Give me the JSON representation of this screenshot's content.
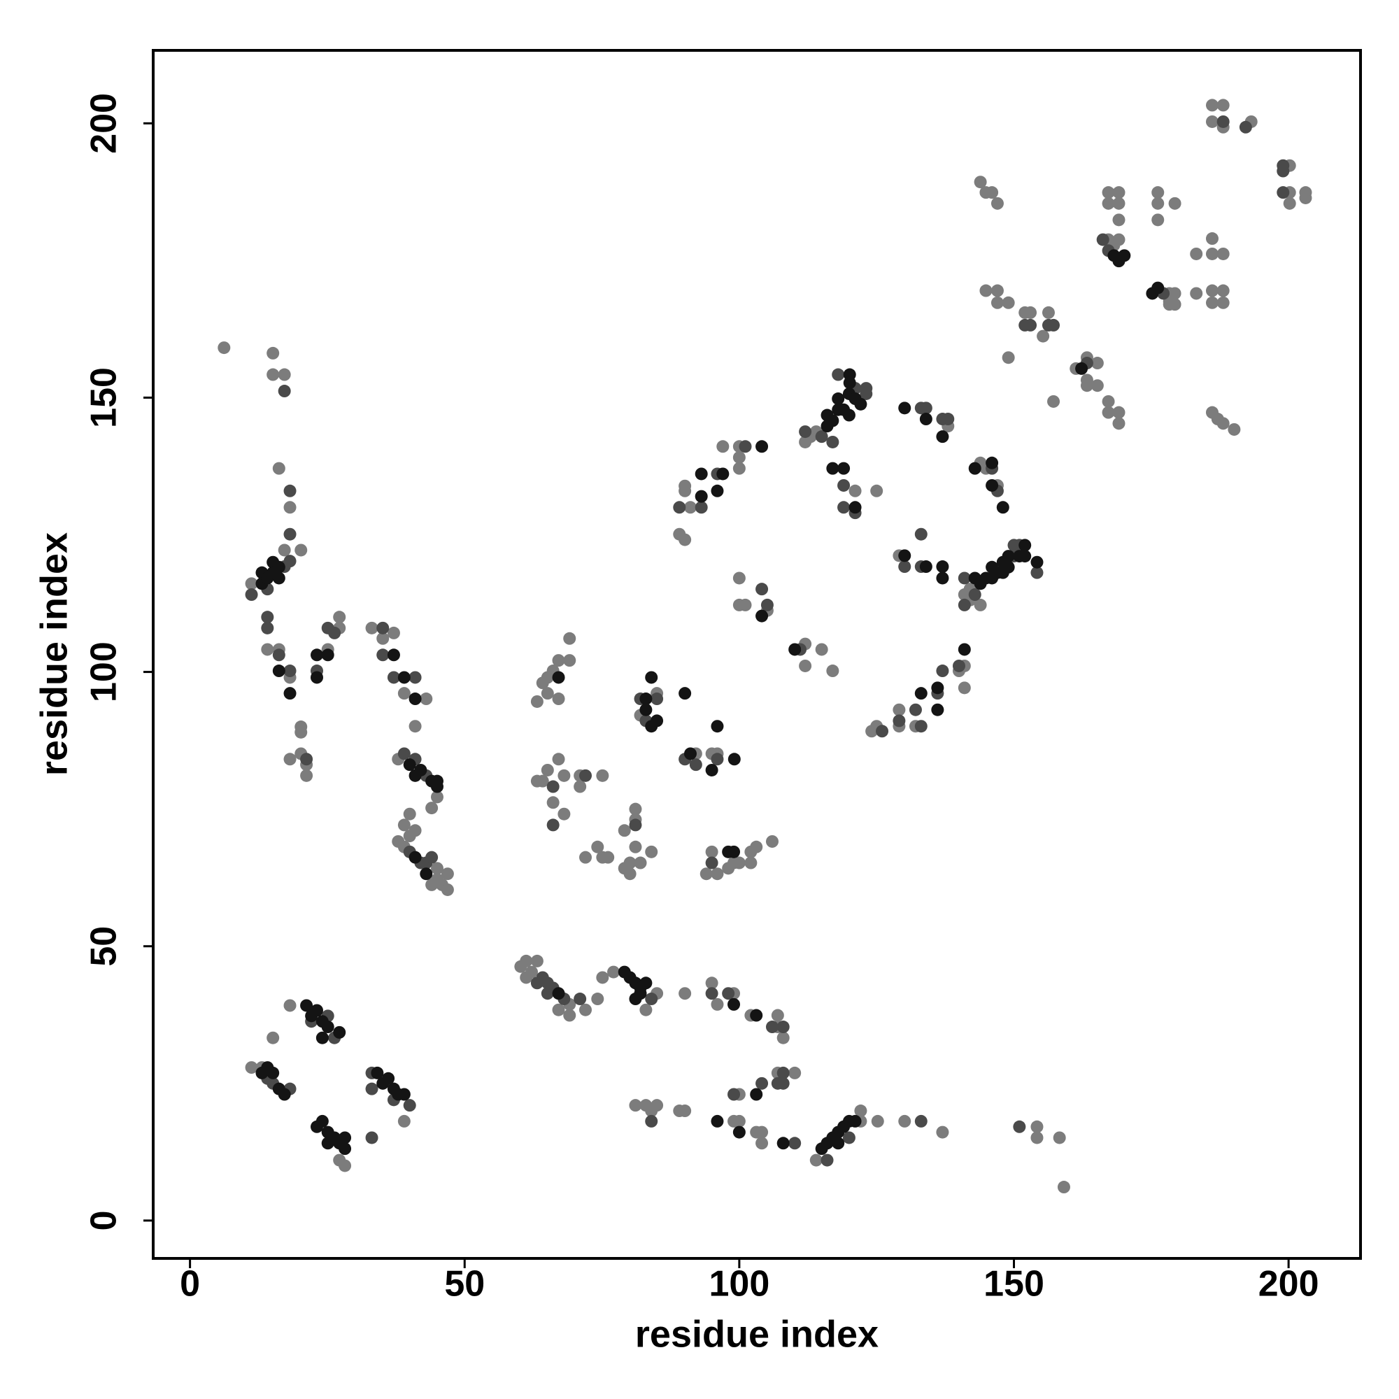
{
  "chart_data": {
    "type": "scatter",
    "x_label": "residue index",
    "y_label": "residue index",
    "xlim": [
      -6.7,
      213.1
    ],
    "ylim": [
      -6.9,
      213.3
    ],
    "xticks": [
      0,
      50,
      100,
      150,
      200
    ],
    "yticks": [
      0,
      50,
      100,
      150,
      200
    ],
    "grid": false,
    "series": [
      {
        "color": "#7c7c7c",
        "x": [
          6.2,
          15.1,
          15.1,
          17.2,
          16.2,
          18.2,
          20.2,
          17.2,
          11.2,
          14.1,
          16.2,
          18.2,
          20.2,
          20.2,
          20.2,
          18.2,
          21.2,
          21.2,
          25.1,
          27.2,
          27.2,
          33.1,
          35.1,
          37.1,
          39,
          43,
          41,
          37.9,
          45,
          44,
          37.9,
          39,
          39,
          40,
          40,
          41,
          45,
          45,
          46.9,
          45.9,
          46.9,
          44,
          13.1,
          11.2,
          15.1,
          18.2,
          27.2,
          28.2,
          39,
          60.2,
          61.2,
          63.2,
          62.2,
          61.2,
          69.1,
          67.1,
          69.1,
          72,
          74.2,
          75.1,
          77.1,
          83,
          85,
          90.1,
          95,
          96,
          99,
          102.1,
          107,
          107,
          108,
          100,
          107,
          110.1,
          81.1,
          83,
          84,
          85,
          89.1,
          90.1,
          99,
          100,
          103.1,
          104.1,
          104.1,
          114,
          122.1,
          122.1,
          125.2,
          130.1,
          137,
          154.2,
          154.2,
          158.3,
          159.1,
          63.2,
          65.1,
          65.1,
          66.1,
          67.1,
          69.1,
          69.1,
          67.1,
          64.2,
          63.2,
          65.1,
          67.1,
          68.1,
          66.1,
          68.1,
          64.2,
          71,
          71,
          75.1,
          72,
          74.2,
          75.1,
          76.1,
          79.1,
          81.1,
          81.1,
          80.1,
          79.1,
          80.1,
          82,
          84,
          81.1,
          85,
          82,
          92.1,
          95,
          96,
          95,
          94,
          96,
          98,
          100,
          102.1,
          102.1,
          103.1,
          106,
          99,
          89.1,
          90.1,
          90.1,
          91.1,
          97,
          100,
          100,
          100,
          90.1,
          100,
          100,
          101.1,
          105.1,
          112,
          112,
          115,
          117,
          112,
          113,
          114,
          121.1,
          125,
          138,
          143.9,
          144.9,
          147,
          129.1,
          141,
          142,
          143.9,
          142,
          124.1,
          125,
          129.1,
          129.1,
          132.1,
          140,
          141,
          141,
          143.9,
          144.9,
          146,
          147,
          144.9,
          147,
          147,
          149,
          149,
          152,
          153,
          156.3,
          155.3,
          157.2,
          161.3,
          163.3,
          165.2,
          163.3,
          165.2,
          163.3,
          167.2,
          167.2,
          169.1,
          169.1,
          167.2,
          169.1,
          167.2,
          169.1,
          169.1,
          167.2,
          169.1,
          168.2,
          176.2,
          176.2,
          176.2,
          179.3,
          178.3,
          178.3,
          179.3,
          179.3,
          178.3,
          183.2,
          183.2,
          186.1,
          188.1,
          186.1,
          188.1,
          193.2,
          186.1,
          186.1,
          188.1,
          186.1,
          188.1,
          186.1,
          188.1,
          186.1,
          187.1,
          188.1,
          190.1,
          200.2,
          200.2,
          200.2,
          203.1,
          203.1
        ],
        "y": [
          159.1,
          158.1,
          154.2,
          154.2,
          137.1,
          130,
          122.2,
          122.2,
          116.1,
          104.1,
          104.1,
          99,
          90,
          89,
          85.1,
          84.1,
          83.1,
          81.1,
          104.1,
          110,
          108,
          108,
          106.1,
          107.1,
          96.1,
          95.1,
          90.1,
          84.1,
          77.2,
          75.2,
          69.1,
          72.1,
          68.1,
          74.1,
          70.1,
          71.1,
          64.2,
          62.2,
          63.2,
          61.2,
          60.3,
          61.2,
          27.9,
          27.9,
          33.3,
          39.2,
          11,
          10,
          18.1,
          46.3,
          47.3,
          47.3,
          45.3,
          44.3,
          39.4,
          38.4,
          37.4,
          38.4,
          40.4,
          44.3,
          45.3,
          38.4,
          41.4,
          41.4,
          43.3,
          39.4,
          41.4,
          37.4,
          37.4,
          35.3,
          33.3,
          23,
          26.9,
          26.9,
          21,
          21,
          20,
          21,
          20,
          20,
          18.1,
          18.1,
          16.1,
          16.1,
          14.1,
          11,
          20,
          18.1,
          18.1,
          18.1,
          16.1,
          17.1,
          15.1,
          15.1,
          6.1,
          94.6,
          96.1,
          99,
          100.2,
          102.1,
          102.1,
          106.1,
          95.1,
          98,
          80.1,
          82.1,
          84.1,
          81.1,
          76.2,
          74.1,
          80.1,
          81.1,
          79.1,
          81.1,
          66.2,
          68.1,
          66.2,
          66.2,
          71.1,
          75,
          68.1,
          65.2,
          64.2,
          63.2,
          65.2,
          67.2,
          73.1,
          96.1,
          92.1,
          85.1,
          85.1,
          85.1,
          67.2,
          63.2,
          63.2,
          64.2,
          65.2,
          67.2,
          65.2,
          68.1,
          69.1,
          65.2,
          125.1,
          124.1,
          133.9,
          130,
          141.1,
          141.1,
          137.1,
          139.1,
          133,
          117.1,
          112.2,
          112.2,
          111.2,
          105.1,
          101.1,
          104.1,
          100.2,
          141.9,
          142.9,
          143.8,
          133,
          133,
          144.8,
          138.1,
          137.1,
          134,
          121.2,
          114.1,
          113.1,
          112.2,
          115.1,
          89.2,
          90.1,
          90.1,
          93.1,
          90.1,
          100.2,
          101.1,
          97.1,
          189.3,
          187.4,
          187.4,
          185.4,
          169.5,
          169.5,
          167.3,
          167.3,
          157.3,
          165.5,
          165.5,
          165.5,
          161.2,
          149.3,
          155.3,
          157.3,
          156.3,
          153.2,
          152.2,
          152.2,
          149.3,
          147.3,
          147.3,
          145.3,
          187.4,
          187.4,
          185.4,
          185.4,
          182.4,
          178.8,
          178.8,
          177.8,
          187.4,
          182.4,
          185.4,
          185.4,
          169,
          167.5,
          169,
          167,
          167,
          169,
          176.2,
          203.3,
          203.3,
          200.3,
          199.3,
          200.3,
          179,
          176.2,
          176.2,
          169.5,
          169.5,
          167.3,
          167.3,
          147.3,
          146.1,
          145.3,
          144.2,
          192.3,
          187.4,
          185.4,
          187.4,
          186.4
        ]
      },
      {
        "color": "#4a4a4a",
        "x": [
          17.2,
          18.2,
          18.2,
          18.2,
          17.2,
          11.2,
          14.1,
          14.1,
          14.1,
          16.2,
          18.2,
          21.2,
          23.1,
          25.1,
          26.3,
          35.1,
          35.1,
          37.1,
          41,
          39,
          41,
          43,
          40,
          42,
          43,
          44,
          15.1,
          18.2,
          14.1,
          25.1,
          26.3,
          22.1,
          33.1,
          33.1,
          37.1,
          40,
          33.1,
          63.2,
          64.2,
          65.1,
          66.1,
          65.1,
          68.1,
          71,
          84,
          95,
          98,
          108,
          106,
          99,
          104.1,
          108,
          107,
          108,
          84,
          110.1,
          116,
          120,
          133.1,
          151,
          66.1,
          66.1,
          72,
          81.1,
          82,
          85,
          83,
          90.1,
          92.1,
          96,
          95,
          89.1,
          93.1,
          96,
          101.1,
          104.1,
          105.1,
          111.1,
          112,
          115,
          117,
          121.1,
          123.1,
          123.1,
          118,
          119,
          119,
          121.1,
          133.1,
          134,
          137,
          138,
          146,
          147,
          130.1,
          133.1,
          133.1,
          141,
          141,
          142.9,
          150,
          150,
          151,
          154.2,
          126,
          129.1,
          132.1,
          133.1,
          137,
          136.1,
          140,
          152,
          153,
          156.3,
          157.2,
          163.3,
          166.2,
          167.2,
          177.2,
          188.1,
          192.2,
          199,
          199,
          199
        ],
        "y": [
          151.2,
          133,
          125.1,
          120.2,
          119.2,
          114.1,
          115.1,
          110,
          108,
          103.1,
          100.2,
          84.1,
          100.2,
          108,
          107.1,
          108,
          103.1,
          99,
          99,
          85.1,
          84.1,
          81.1,
          67.2,
          65.2,
          65.2,
          66.2,
          25,
          24,
          25.9,
          37.3,
          33.3,
          36.3,
          15.1,
          26.9,
          22,
          21,
          24,
          43.3,
          44.3,
          43.3,
          42.4,
          41.4,
          40.4,
          40.4,
          40.4,
          41.4,
          41.4,
          35.3,
          35.3,
          23,
          25,
          26.9,
          25,
          25,
          18.1,
          14.1,
          11,
          15.1,
          18.1,
          17.1,
          79.1,
          72.1,
          81.1,
          72.1,
          95.1,
          95.1,
          91.1,
          84.1,
          83.1,
          84.1,
          65.2,
          130,
          130,
          136.1,
          141.1,
          115.1,
          112.2,
          104.1,
          143.8,
          142.9,
          141.9,
          151.7,
          151.7,
          150.7,
          154.2,
          134,
          130,
          129,
          148.1,
          148.1,
          146.1,
          146.1,
          137.1,
          133,
          119.2,
          125.1,
          119.2,
          117.1,
          112.2,
          114.1,
          121.1,
          123.1,
          123.1,
          118.1,
          89.2,
          91.1,
          93.1,
          90.1,
          100.2,
          96.1,
          101.1,
          163.2,
          163.2,
          163.2,
          163.2,
          156.3,
          178.8,
          176.8,
          169,
          200.3,
          199.3,
          192.3,
          191.3,
          187.4
        ]
      },
      {
        "color": "#141414",
        "x": [
          13.1,
          13.1,
          14.1,
          15.1,
          15.1,
          16.2,
          16.2,
          16.2,
          18.2,
          23.1,
          23.1,
          25.1,
          37.1,
          39,
          41,
          40,
          41,
          42,
          44,
          45,
          45,
          41,
          43,
          14.1,
          15.1,
          16.2,
          17.2,
          13.1,
          21.2,
          22.1,
          23.1,
          24.1,
          25.1,
          24.1,
          27.2,
          23.1,
          24.1,
          25.1,
          25.1,
          26.3,
          27.2,
          28.2,
          28.2,
          34.1,
          35.1,
          36.1,
          37.1,
          37.9,
          39,
          67.1,
          79.1,
          80.1,
          81.1,
          82,
          83,
          81.1,
          82,
          99,
          103.1,
          103.1,
          96,
          100,
          108,
          115,
          116,
          117,
          118,
          118,
          119,
          120,
          121.1,
          67.1,
          84,
          83,
          84,
          85,
          83,
          90.1,
          96,
          91.1,
          95,
          99.1,
          98,
          99,
          93.1,
          93.1,
          96,
          97,
          104.1,
          104.1,
          110.1,
          116,
          116,
          117,
          118,
          118,
          119,
          120,
          120,
          121.1,
          122.1,
          120.1,
          120.1,
          117,
          119,
          121.1,
          130.1,
          134,
          137,
          142.9,
          146,
          146,
          148,
          130.1,
          134,
          137,
          137,
          142.9,
          143.9,
          144.9,
          146,
          146,
          147,
          148,
          148,
          149,
          149,
          151,
          152,
          152,
          154.2,
          133.1,
          136.1,
          136.1,
          141,
          162.3,
          168.2,
          169.1,
          170.1,
          175.2,
          176.2
        ],
        "y": [
          118.1,
          116.1,
          117.1,
          120,
          118.1,
          119.1,
          117.1,
          100.2,
          96.1,
          103.1,
          99,
          103.1,
          103.1,
          99,
          95.1,
          83.1,
          81.1,
          82.1,
          80.1,
          80.1,
          79.1,
          66.2,
          63.2,
          27.9,
          26.9,
          24,
          23,
          26.9,
          39.2,
          37.3,
          38.3,
          36.3,
          35.3,
          33.3,
          34.3,
          17.1,
          18.1,
          16.1,
          14.1,
          15.1,
          14.1,
          15.1,
          13.1,
          26.9,
          25,
          25.9,
          24,
          23,
          23,
          41.4,
          45.3,
          44.3,
          43.3,
          42.4,
          43.3,
          40.4,
          41.4,
          39.4,
          37.4,
          23,
          18.1,
          16.1,
          14.1,
          13.1,
          14.1,
          15.1,
          14.1,
          16.1,
          17.1,
          18.1,
          18.1,
          99,
          99,
          95.1,
          90.1,
          91.1,
          93.1,
          96.1,
          90.1,
          85.1,
          82.1,
          84.1,
          67.2,
          67.2,
          132,
          136.1,
          133,
          136.1,
          141.1,
          110.2,
          104.1,
          144.8,
          146.8,
          145.8,
          147.8,
          149.8,
          147.8,
          150.7,
          146.8,
          149.8,
          148.8,
          154.2,
          152.7,
          137.1,
          137.1,
          130,
          148.1,
          146.1,
          142.9,
          137.1,
          138.1,
          134,
          130,
          121.2,
          119.2,
          119.2,
          117.1,
          117.1,
          116.1,
          117.1,
          119.1,
          117.1,
          118.1,
          120,
          118.1,
          121.1,
          119.1,
          121.1,
          123.1,
          121.1,
          120,
          96.1,
          97.1,
          93.1,
          104.1,
          155.3,
          175.9,
          174.9,
          175.9,
          169,
          170
        ]
      }
    ]
  }
}
